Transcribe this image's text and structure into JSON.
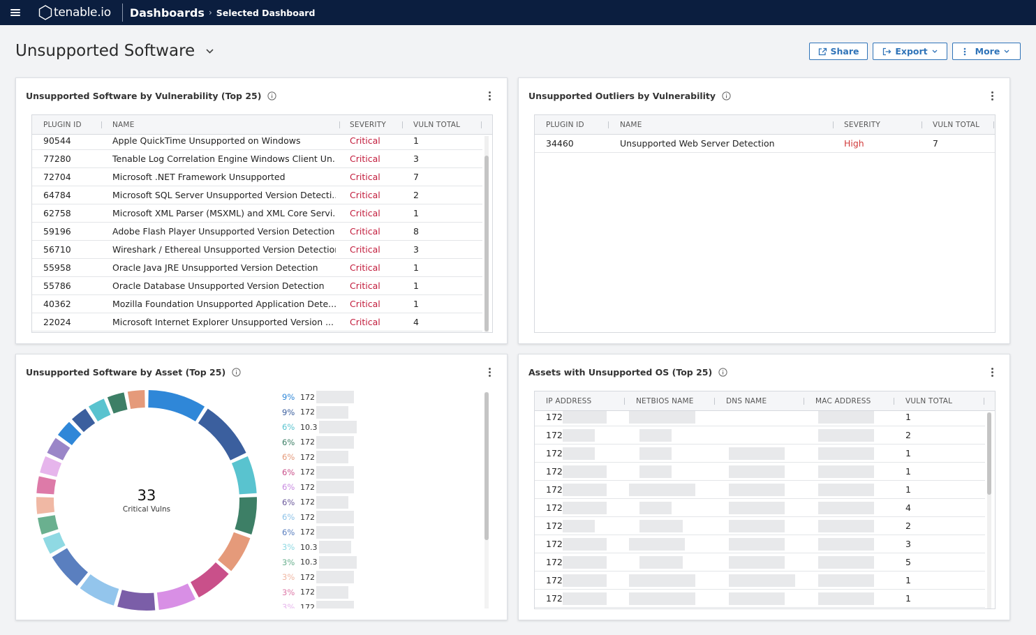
{
  "topbar": {
    "brand": "tenable.io",
    "breadcrumb_main": "Dashboards",
    "breadcrumb_sep": "›",
    "breadcrumb_sub": "Selected Dashboard"
  },
  "page": {
    "title": "Unsupported Software",
    "actions": {
      "share": "Share",
      "export": "Export",
      "more": "More"
    }
  },
  "colors": {
    "topbar": "#0b1e3f",
    "accent": "#2f73b8",
    "critical": "#c21c3c",
    "high": "#d13b3b"
  },
  "widget_vuln": {
    "title": "Unsupported Software by Vulnerability (Top 25)",
    "columns": [
      "PLUGIN ID",
      "NAME",
      "SEVERITY",
      "VULN TOTAL"
    ],
    "rows": [
      [
        "90544",
        "Apple QuickTime Unsupported on Windows",
        "Critical",
        "1"
      ],
      [
        "77280",
        "Tenable Log Correlation Engine Windows Client Un...",
        "Critical",
        "3"
      ],
      [
        "72704",
        "Microsoft .NET Framework Unsupported",
        "Critical",
        "7"
      ],
      [
        "64784",
        "Microsoft SQL Server Unsupported Version Detecti...",
        "Critical",
        "2"
      ],
      [
        "62758",
        "Microsoft XML Parser (MSXML) and XML Core Servi...",
        "Critical",
        "1"
      ],
      [
        "59196",
        "Adobe Flash Player Unsupported Version Detection",
        "Critical",
        "8"
      ],
      [
        "56710",
        "Wireshark / Ethereal Unsupported Version Detection",
        "Critical",
        "3"
      ],
      [
        "55958",
        "Oracle Java JRE Unsupported Version Detection",
        "Critical",
        "1"
      ],
      [
        "55786",
        "Oracle Database Unsupported Version Detection",
        "Critical",
        "1"
      ],
      [
        "40362",
        "Mozilla Foundation Unsupported Application Dete...",
        "Critical",
        "1"
      ],
      [
        "22024",
        "Microsoft Internet Explorer Unsupported Version ...",
        "Critical",
        "4"
      ]
    ]
  },
  "widget_outliers": {
    "title": "Unsupported Outliers by Vulnerability",
    "columns": [
      "PLUGIN ID",
      "NAME",
      "SEVERITY",
      "VULN TOTAL"
    ],
    "rows": [
      [
        "34460",
        "Unsupported Web Server Detection",
        "High",
        "7"
      ]
    ]
  },
  "widget_asset": {
    "title": "Unsupported Software by Asset (Top 25)",
    "center_value": "33",
    "center_label": "Critical Vulns",
    "legend": [
      {
        "pct": "9%",
        "ip": "172",
        "color": "#2f87d8"
      },
      {
        "pct": "9%",
        "ip": "172",
        "color": "#3b5f9e"
      },
      {
        "pct": "6%",
        "ip": "10.3",
        "color": "#59c3cf"
      },
      {
        "pct": "6%",
        "ip": "172",
        "color": "#3d7f66"
      },
      {
        "pct": "6%",
        "ip": "172",
        "color": "#e59a7a"
      },
      {
        "pct": "6%",
        "ip": "172",
        "color": "#c9508a"
      },
      {
        "pct": "6%",
        "ip": "172",
        "color": "#c88ae0"
      },
      {
        "pct": "6%",
        "ip": "172",
        "color": "#6c5a9c"
      },
      {
        "pct": "6%",
        "ip": "172",
        "color": "#8ec3e8"
      },
      {
        "pct": "6%",
        "ip": "172",
        "color": "#5a7fbf"
      },
      {
        "pct": "3%",
        "ip": "10.3",
        "color": "#8fd9e3"
      },
      {
        "pct": "3%",
        "ip": "10.3",
        "color": "#6ab08f"
      },
      {
        "pct": "3%",
        "ip": "172",
        "color": "#f0b8a4"
      },
      {
        "pct": "3%",
        "ip": "172",
        "color": "#dd7aa8"
      },
      {
        "pct": "3%",
        "ip": "172",
        "color": "#e6b5ec"
      }
    ],
    "segments": [
      {
        "value": 3,
        "color": "#2f87d8"
      },
      {
        "value": 3,
        "color": "#3b5f9e"
      },
      {
        "value": 2,
        "color": "#59c3cf"
      },
      {
        "value": 2,
        "color": "#3d7f66"
      },
      {
        "value": 2,
        "color": "#e59a7a"
      },
      {
        "value": 2,
        "color": "#c9508a"
      },
      {
        "value": 2,
        "color": "#d88fe5"
      },
      {
        "value": 2,
        "color": "#7b5ea8"
      },
      {
        "value": 2,
        "color": "#93c5ec"
      },
      {
        "value": 2,
        "color": "#5a7fbf"
      },
      {
        "value": 1,
        "color": "#8fd9e3"
      },
      {
        "value": 1,
        "color": "#6ab08f"
      },
      {
        "value": 1,
        "color": "#f0b8a4"
      },
      {
        "value": 1,
        "color": "#dd7aa8"
      },
      {
        "value": 1,
        "color": "#e6b5ec"
      },
      {
        "value": 1,
        "color": "#9a86c8"
      },
      {
        "value": 1,
        "color": "#2f87d8"
      },
      {
        "value": 1,
        "color": "#3b5f9e"
      },
      {
        "value": 1,
        "color": "#59c3cf"
      },
      {
        "value": 1,
        "color": "#3d7f66"
      },
      {
        "value": 1,
        "color": "#e59a7a"
      }
    ]
  },
  "widget_os": {
    "title": "Assets with Unsupported OS (Top 25)",
    "columns": [
      "IP ADDRESS",
      "NETBIOS NAME",
      "DNS NAME",
      "MAC ADDRESS",
      "VULN TOTAL"
    ],
    "rows": [
      [
        "172",
        "1"
      ],
      [
        "172",
        "2"
      ],
      [
        "172",
        "1"
      ],
      [
        "172",
        "1"
      ],
      [
        "172",
        "1"
      ],
      [
        "172",
        "4"
      ],
      [
        "172",
        "2"
      ],
      [
        "172",
        "3"
      ],
      [
        "172",
        "5"
      ],
      [
        "172",
        "1"
      ],
      [
        "172",
        "1"
      ]
    ]
  }
}
